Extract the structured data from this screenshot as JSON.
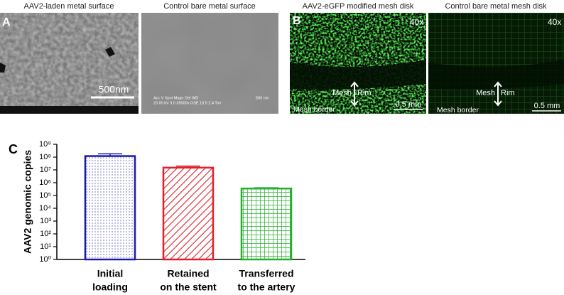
{
  "figure": {
    "panel_labels": [
      "A",
      "B",
      "C"
    ],
    "images": [
      {
        "title": "AAV2-laden metal surface",
        "scale": "500nm"
      },
      {
        "title": "Control bare metal surface",
        "info": [
          "Acc.V   Spot  Magn    Det  WD",
          "20.00 kV  3.0  35000x  GSE  10.5  2.4 Torr"
        ],
        "scale": "500 nm"
      },
      {
        "title": "AAV2-eGFP modified mesh disk",
        "magnification": "40x",
        "mesh": "Mesh",
        "rim": "Rim",
        "border": "Mesh border",
        "scale": "0.5 mm"
      },
      {
        "title": "Control bare metal mesh disk",
        "magnification": "40x",
        "mesh": "Mesh",
        "rim": "Rim",
        "border": "Mesh border",
        "scale": "0.5 mm"
      }
    ]
  },
  "chart_data": {
    "type": "bar",
    "y_label": "AAV2 genomic copies",
    "categories": [
      [
        "Initial",
        "loading"
      ],
      [
        "Retained",
        "on the stent"
      ],
      [
        "Transferred",
        "to the artery"
      ]
    ],
    "values": [
      120000000,
      15000000,
      350000
    ],
    "errors": [
      60000000,
      5000000,
      50000
    ],
    "colors": [
      "#1a1aaa",
      "#e0202a",
      "#22b02a"
    ],
    "log": true,
    "ylim": [
      1,
      1000000000
    ],
    "yticks": [
      {
        "value": 1,
        "label": "10⁰"
      },
      {
        "value": 10,
        "label": "10¹"
      },
      {
        "value": 100,
        "label": "10²"
      },
      {
        "value": 1000,
        "label": "10³"
      },
      {
        "value": 10000,
        "label": "10⁴"
      },
      {
        "value": 100000,
        "label": "10⁵"
      },
      {
        "value": 1000000,
        "label": "10⁶"
      },
      {
        "value": 10000000,
        "label": "10⁷"
      },
      {
        "value": 100000000,
        "label": "10⁸"
      },
      {
        "value": 1000000000,
        "label": "10⁹"
      }
    ]
  }
}
